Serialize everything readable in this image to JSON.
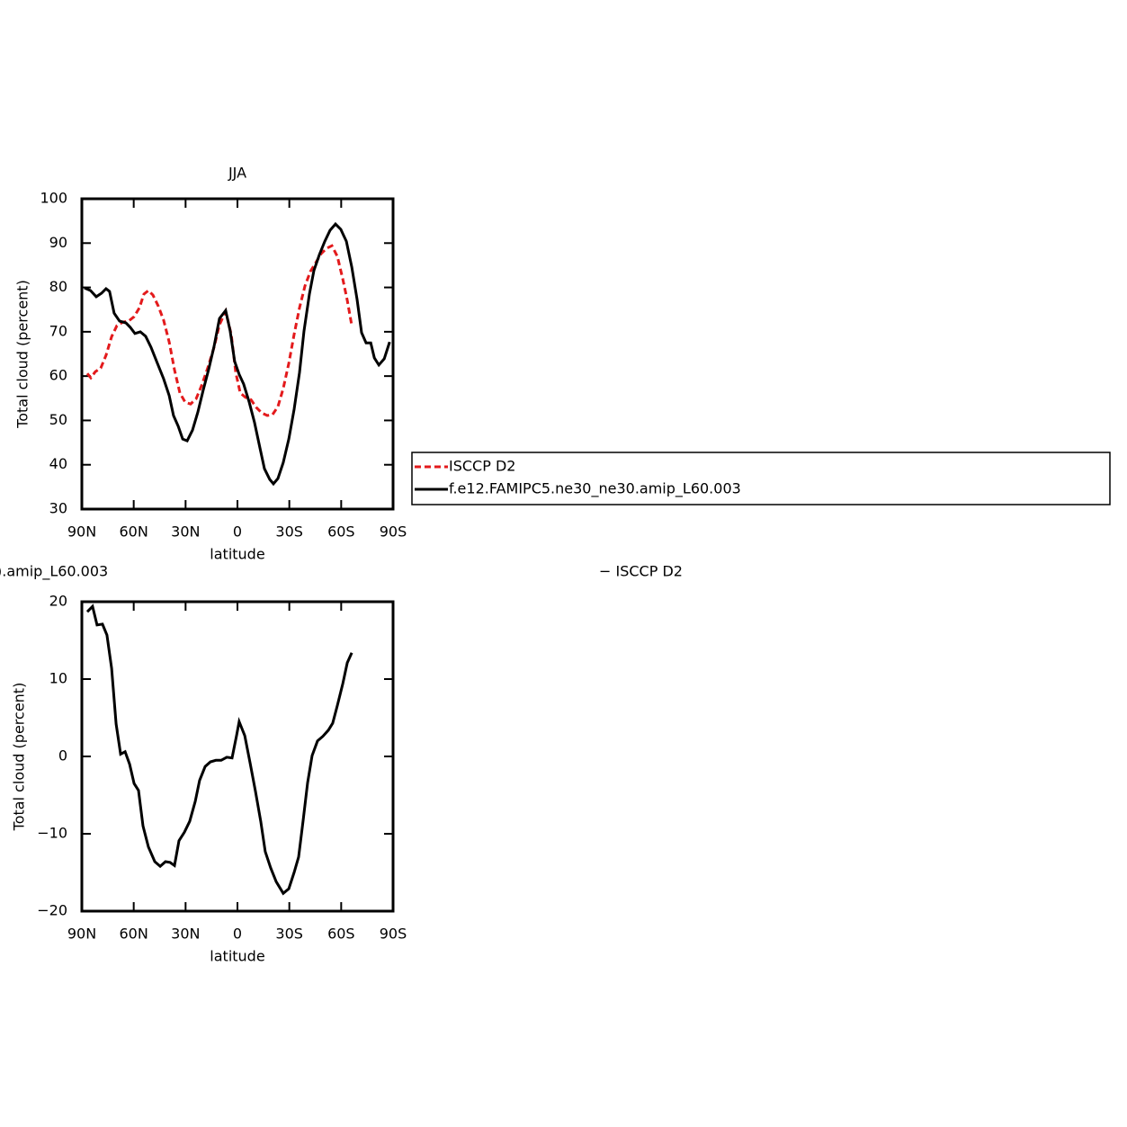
{
  "chart_data": [
    {
      "type": "line",
      "title": "JJA",
      "xlabel": "latitude",
      "ylabel": "Total cloud (percent)",
      "xlim": [
        90,
        -90
      ],
      "ylim": [
        30,
        100
      ],
      "xticks": [
        {
          "value": 90,
          "label": "90N"
        },
        {
          "value": 60,
          "label": "60N"
        },
        {
          "value": 30,
          "label": "30N"
        },
        0,
        {
          "value": -30,
          "label": "30S"
        },
        {
          "value": -60,
          "label": "60S"
        },
        {
          "value": -90,
          "label": "90S"
        }
      ],
      "yticks": [
        30,
        40,
        50,
        60,
        70,
        80,
        90,
        100
      ],
      "legend": "right",
      "series": [
        {
          "name": "ISCCP D2",
          "color": "#e31a1c",
          "style": "dashed",
          "x": [
            86.9,
            84.8,
            82.2,
            79.1,
            76,
            72.8,
            69.7,
            66.1,
            63,
            59.8,
            56.7,
            54.1,
            51.5,
            48.9,
            45.8,
            42.7,
            39.5,
            36.4,
            33.3,
            30.2,
            27.1,
            23.9,
            20.8,
            17.2,
            13.5,
            10.4,
            6.8,
            3.6,
            1.0,
            -1.6,
            -4.7,
            -7.8,
            -10.9,
            -14.0,
            -17.2,
            -20.3,
            -23.4,
            -26.5,
            -29.7,
            -32.8,
            -35.9,
            -39.0,
            -42.2,
            -45.3,
            -48.4,
            -51.5,
            -54.6,
            -57.8,
            -60.9,
            -63.5,
            -66.1
          ],
          "values": [
            60.6,
            59.6,
            61.0,
            61.8,
            64.7,
            68.9,
            71.4,
            72.2,
            72.4,
            73.4,
            75.4,
            78.5,
            79.3,
            78.3,
            75.8,
            72.6,
            67.7,
            61.4,
            56.2,
            54.1,
            53.7,
            54.9,
            57.8,
            61.8,
            66.5,
            71.6,
            74.6,
            69.4,
            60.8,
            56.2,
            55.2,
            54.7,
            52.9,
            51.7,
            51.1,
            51.3,
            53.1,
            57.2,
            62.9,
            69.4,
            75.4,
            80.3,
            83.6,
            85.6,
            87.6,
            88.8,
            89.4,
            87.0,
            81.9,
            77.1,
            71.4
          ]
        },
        {
          "name": "f.e12.FAMIPC5.ne30_ne30.amip_L60.003",
          "color": "#000000",
          "style": "solid",
          "x": [
            88.5,
            85,
            81.7,
            78.6,
            76,
            74,
            71.3,
            68.2,
            64.5,
            62,
            59.3,
            56.2,
            53.1,
            50,
            46.3,
            42.7,
            39.5,
            37,
            34.3,
            31.7,
            29.1,
            26,
            22.9,
            19.8,
            16.6,
            13.5,
            10.4,
            6.8,
            4.2,
            1.6,
            -1.0,
            -3.6,
            -6.8,
            -9.9,
            -13,
            -15.6,
            -18.7,
            -20.8,
            -23.4,
            -26.5,
            -29.7,
            -32.8,
            -35.9,
            -38.5,
            -41.6,
            -44.2,
            -47.4,
            -50.5,
            -53.6,
            -56.7,
            -59.8,
            -63,
            -66.1,
            -69.2,
            -71.8,
            -74.4,
            -77.1,
            -79.2,
            -81.8,
            -84.9,
            -88
          ],
          "values": [
            79.9,
            79.3,
            77.9,
            78.7,
            79.7,
            79.1,
            74.2,
            72.4,
            72.0,
            71.0,
            69.6,
            70.0,
            69.0,
            66.5,
            62.9,
            59.4,
            55.6,
            51.1,
            48.7,
            45.8,
            45.4,
            47.8,
            51.9,
            56.8,
            61.6,
            66.7,
            73.0,
            74.8,
            70.2,
            63.3,
            60.4,
            58.2,
            54.1,
            49.5,
            43.8,
            39.1,
            36.7,
            35.7,
            36.9,
            40.5,
            45.8,
            52.5,
            60.8,
            70.2,
            78.5,
            83.8,
            87.4,
            90.4,
            92.9,
            94.3,
            93.1,
            90.4,
            84.6,
            77.3,
            69.8,
            67.5,
            67.5,
            64.1,
            62.5,
            63.9,
            67.7
          ]
        }
      ]
    },
    {
      "type": "line",
      "title": [
        ").amip_L60.003",
        "− ISCCP D2"
      ],
      "xlabel": "latitude",
      "ylabel": "Total cloud (percent)",
      "xlim": [
        90,
        -90
      ],
      "ylim": [
        -20,
        20
      ],
      "xticks": [
        {
          "value": 90,
          "label": "90N"
        },
        {
          "value": 60,
          "label": "60N"
        },
        {
          "value": 30,
          "label": "30N"
        },
        0,
        {
          "value": -30,
          "label": "30S"
        },
        {
          "value": -60,
          "label": "60S"
        },
        {
          "value": -90,
          "label": "90S"
        }
      ],
      "yticks": [
        {
          "value": -20,
          "label": "−20"
        },
        {
          "value": -10,
          "label": "−10"
        },
        0,
        10,
        20
      ],
      "color": "#000000",
      "x": [
        86.9,
        83.8,
        81.2,
        78.1,
        75.5,
        72.8,
        70.2,
        67.6,
        65.0,
        62.4,
        59.8,
        57.2,
        54.6,
        51.5,
        47.8,
        44.7,
        41.6,
        39.0,
        36.4,
        33.8,
        30.7,
        27.6,
        24.4,
        21.9,
        18.7,
        15.6,
        12.5,
        9.4,
        6.2,
        3.1,
        0.5,
        -1.0,
        -4.2,
        -7.3,
        -10.4,
        -13.5,
        -16.1,
        -19.2,
        -22.4,
        -26.5,
        -29.7,
        -32.8,
        -35.4,
        -38.0,
        -40.6,
        -43.2,
        -46.3,
        -49.4,
        -52.6,
        -55.1,
        -57.8,
        -60.9,
        -63.5,
        -66.1
      ],
      "values": [
        18.7,
        19.4,
        17.0,
        17.1,
        15.7,
        11.4,
        4.2,
        0.3,
        0.6,
        -1.0,
        -3.5,
        -4.4,
        -9.0,
        -11.7,
        -13.6,
        -14.2,
        -13.6,
        -13.7,
        -14.1,
        -10.9,
        -9.8,
        -8.4,
        -5.8,
        -3.1,
        -1.3,
        -0.7,
        -0.5,
        -0.5,
        -0.1,
        -0.2,
        2.7,
        4.5,
        2.7,
        -0.8,
        -4.5,
        -8.4,
        -12.3,
        -14.4,
        -16.2,
        -17.7,
        -17.1,
        -15.0,
        -13.0,
        -8.3,
        -3.4,
        0.1,
        2.0,
        2.6,
        3.4,
        4.3,
        6.6,
        9.4,
        12.1,
        13.4
      ]
    }
  ]
}
